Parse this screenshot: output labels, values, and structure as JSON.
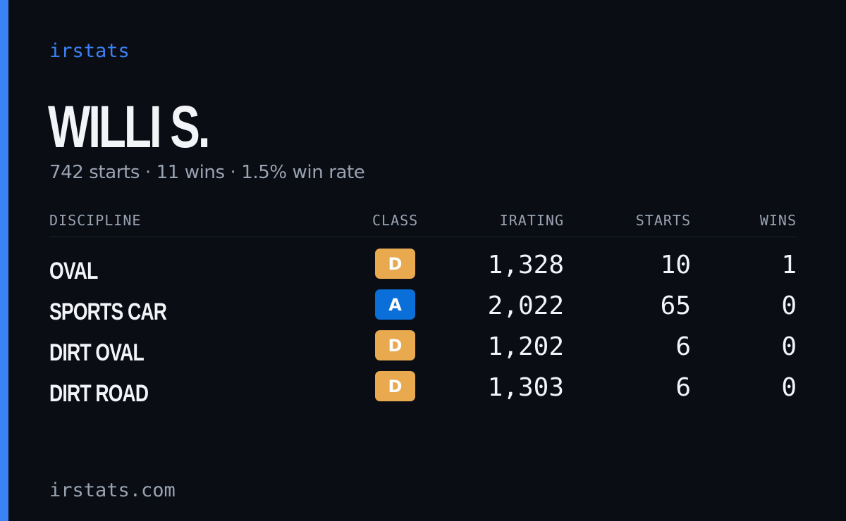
{
  "colors": {
    "background": "#0a0d14",
    "accent": "#3b82f6",
    "text_primary": "#f3f4f7",
    "text_muted": "#9aa3b2",
    "class_d": "#e8a94f",
    "class_a": "#0a6fd8"
  },
  "brand": "irstats",
  "driver": {
    "name": "WILLI S.",
    "summary": "742 starts · 11 wins · 1.5% win rate"
  },
  "table": {
    "headers": {
      "discipline": "DISCIPLINE",
      "class": "CLASS",
      "irating": "IRATING",
      "starts": "STARTS",
      "wins": "WINS"
    },
    "rows": [
      {
        "discipline": "OVAL",
        "class": "D",
        "irating": "1,328",
        "starts": "10",
        "wins": "1"
      },
      {
        "discipline": "SPORTS CAR",
        "class": "A",
        "irating": "2,022",
        "starts": "65",
        "wins": "0"
      },
      {
        "discipline": "DIRT OVAL",
        "class": "D",
        "irating": "1,202",
        "starts": "6",
        "wins": "0"
      },
      {
        "discipline": "DIRT ROAD",
        "class": "D",
        "irating": "1,303",
        "starts": "6",
        "wins": "0"
      }
    ]
  },
  "footer": {
    "url": "irstats.com"
  }
}
